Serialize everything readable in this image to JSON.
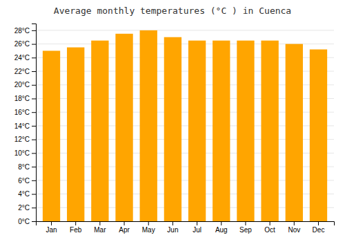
{
  "chart_data": {
    "type": "bar",
    "title": "Average monthly temperatures (°C ) in Cuenca",
    "categories": [
      "Jan",
      "Feb",
      "Mar",
      "Apr",
      "May",
      "Jun",
      "Jul",
      "Aug",
      "Sep",
      "Oct",
      "Nov",
      "Dec"
    ],
    "values": [
      25.0,
      25.5,
      26.5,
      27.5,
      28.0,
      27.0,
      26.5,
      26.5,
      26.5,
      26.5,
      26.0,
      25.2
    ],
    "color": "#FFA500",
    "ylim": [
      0,
      29
    ],
    "yticks": [
      {
        "value": 0,
        "label": "0°C"
      },
      {
        "value": 2,
        "label": "2°C"
      },
      {
        "value": 4,
        "label": "4°C"
      },
      {
        "value": 6,
        "label": "6°C"
      },
      {
        "value": 8,
        "label": "8°C"
      },
      {
        "value": 10,
        "label": "10°C"
      },
      {
        "value": 12,
        "label": "12°C"
      },
      {
        "value": 14,
        "label": "14°C"
      },
      {
        "value": 16,
        "label": "16°C"
      },
      {
        "value": 18,
        "label": "18°C"
      },
      {
        "value": 20,
        "label": "20°C"
      },
      {
        "value": 22,
        "label": "22°C"
      },
      {
        "value": 24,
        "label": "24°C"
      },
      {
        "value": 26,
        "label": "26°C"
      },
      {
        "value": 28,
        "label": "28°C"
      }
    ],
    "grid": true
  }
}
